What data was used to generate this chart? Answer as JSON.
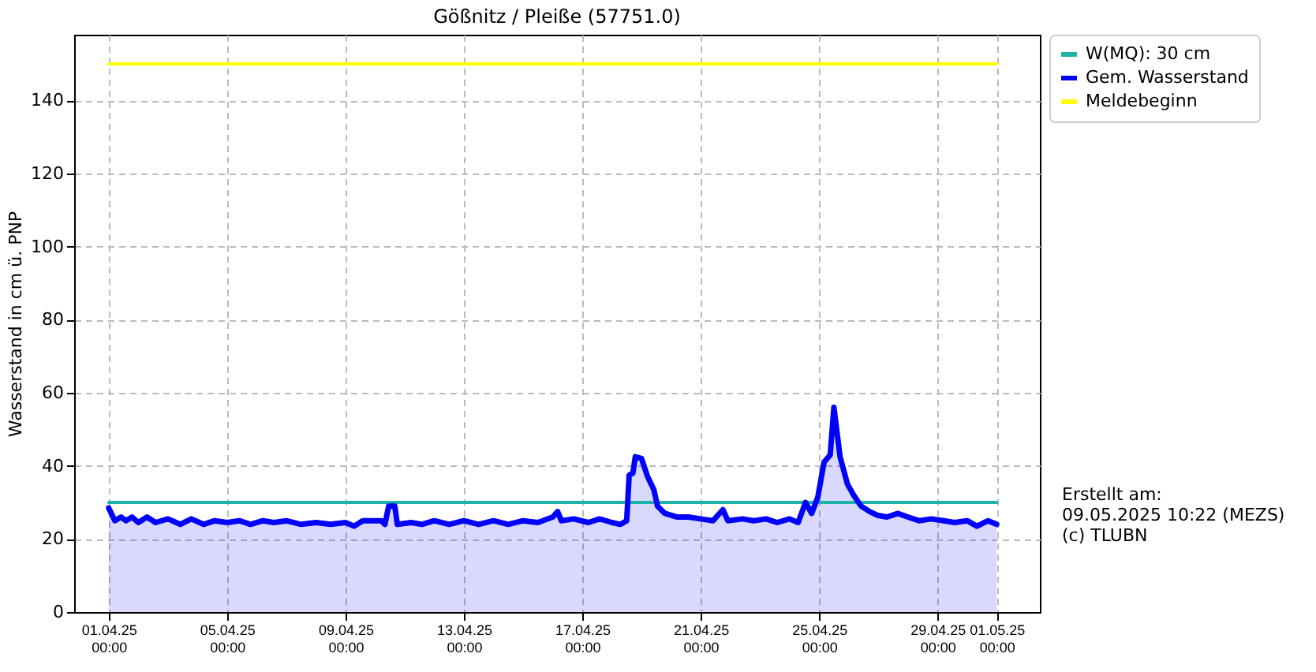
{
  "chart_data": {
    "type": "line",
    "title": "Gößnitz / Pleiße (57751.0)",
    "ylabel": "Wasserstand in cm ü. PNP",
    "xlim": [
      "2025-03-30T20:00",
      "2025-05-02T11:00"
    ],
    "ylim": [
      0,
      158
    ],
    "yticks": [
      0,
      20,
      40,
      60,
      80,
      100,
      120,
      140
    ],
    "xticks": [
      {
        "value": "2025-04-01T00:00",
        "label": "01.04.25\n00:00"
      },
      {
        "value": "2025-04-05T00:00",
        "label": "05.04.25\n00:00"
      },
      {
        "value": "2025-04-09T00:00",
        "label": "09.04.25\n00:00"
      },
      {
        "value": "2025-04-13T00:00",
        "label": "13.04.25\n00:00"
      },
      {
        "value": "2025-04-17T00:00",
        "label": "17.04.25\n00:00"
      },
      {
        "value": "2025-04-21T00:00",
        "label": "21.04.25\n00:00"
      },
      {
        "value": "2025-04-25T00:00",
        "label": "25.04.25\n00:00"
      },
      {
        "value": "2025-04-29T00:00",
        "label": "29.04.25\n00:00"
      },
      {
        "value": "2025-05-01T00:00",
        "label": "01.05.25\n00:00"
      }
    ],
    "grid": true,
    "legend": "top right",
    "annotations": [
      "Erstellt am:\n09.05.2025 10:22 (MEZS)\n(c) TLUBN"
    ],
    "series": [
      {
        "name": "W(MQ): 30 cm",
        "color": "#20b2aa",
        "x": [
          "2025-04-01T00:00",
          "2025-05-01T00:00"
        ],
        "values": [
          30,
          30
        ]
      },
      {
        "name": "Gem. Wasserstand",
        "color": "#0000ff",
        "type": "area",
        "x": [
          "2025-04-01T00:00",
          "2025-04-01T05:00",
          "2025-04-01T10:00",
          "2025-04-01T14:00",
          "2025-04-01T19:00",
          "2025-04-02T00:00",
          "2025-04-02T07:00",
          "2025-04-02T14:00",
          "2025-04-03T00:00",
          "2025-04-03T10:00",
          "2025-04-03T19:00",
          "2025-04-04T05:00",
          "2025-04-04T14:00",
          "2025-04-05T00:00",
          "2025-04-05T10:00",
          "2025-04-05T19:00",
          "2025-04-06T05:00",
          "2025-04-06T14:00",
          "2025-04-07T00:00",
          "2025-04-07T12:00",
          "2025-04-08T00:00",
          "2025-04-08T12:00",
          "2025-04-09T00:00",
          "2025-04-09T07:00",
          "2025-04-09T14:00",
          "2025-04-10T05:00",
          "2025-04-10T08:00",
          "2025-04-10T11:00",
          "2025-04-10T16:00",
          "2025-04-10T18:00",
          "2025-04-11T05:00",
          "2025-04-11T14:00",
          "2025-04-12T00:00",
          "2025-04-12T12:00",
          "2025-04-13T00:00",
          "2025-04-13T12:00",
          "2025-04-14T00:00",
          "2025-04-14T12:00",
          "2025-04-15T00:00",
          "2025-04-15T12:00",
          "2025-04-16T00:00",
          "2025-04-16T04:00",
          "2025-04-16T07:00",
          "2025-04-16T17:00",
          "2025-04-17T05:00",
          "2025-04-17T14:00",
          "2025-04-18T00:00",
          "2025-04-18T07:00",
          "2025-04-18T12:00",
          "2025-04-18T14:00",
          "2025-04-18T17:00",
          "2025-04-18T19:00",
          "2025-04-19T00:00",
          "2025-04-19T05:00",
          "2025-04-19T10:00",
          "2025-04-19T13:00",
          "2025-04-19T19:00",
          "2025-04-20T05:00",
          "2025-04-20T14:00",
          "2025-04-21T00:00",
          "2025-04-21T10:00",
          "2025-04-21T18:00",
          "2025-04-21T22:00",
          "2025-04-22T10:00",
          "2025-04-22T19:00",
          "2025-04-23T05:00",
          "2025-04-23T14:00",
          "2025-04-24T00:00",
          "2025-04-24T07:00",
          "2025-04-24T13:00",
          "2025-04-24T18:00",
          "2025-04-24T23:00",
          "2025-04-25T04:00",
          "2025-04-25T09:00",
          "2025-04-25T12:00",
          "2025-04-25T17:00",
          "2025-04-25T23:00",
          "2025-04-26T04:00",
          "2025-04-26T10:00",
          "2025-04-26T17:00",
          "2025-04-26T23:00",
          "2025-04-27T07:00",
          "2025-04-27T16:00",
          "2025-04-28T00:00",
          "2025-04-28T09:00",
          "2025-04-28T19:00",
          "2025-04-29T05:00",
          "2025-04-29T14:00",
          "2025-04-30T00:00",
          "2025-04-30T08:00",
          "2025-04-30T17:00",
          "2025-05-01T00:00"
        ],
        "values": [
          28.5,
          25,
          26,
          25,
          26,
          24.5,
          26,
          24.5,
          25.5,
          24,
          25.5,
          24,
          25,
          24.5,
          25,
          24,
          25,
          24.5,
          25,
          24,
          24.5,
          24,
          24.5,
          23.5,
          25,
          25,
          24,
          29,
          29,
          24,
          24.5,
          24,
          25,
          24,
          25,
          24,
          25,
          24,
          25,
          24.5,
          26,
          27.5,
          25,
          25.5,
          24.5,
          25.5,
          24.5,
          24,
          25,
          37.5,
          38,
          42.5,
          42,
          37,
          33.5,
          29,
          27,
          26,
          26,
          25.5,
          25,
          28,
          25,
          25.5,
          25,
          25.5,
          24.5,
          25.5,
          24.5,
          30,
          27,
          31.5,
          41,
          43,
          56,
          42.5,
          35,
          32,
          29,
          27.5,
          26.5,
          26,
          27,
          26,
          25,
          25.5,
          25,
          24.5,
          25,
          23.5,
          25,
          24
        ]
      },
      {
        "name": "Meldebeginn",
        "color": "#ffff00",
        "x": [
          "2025-04-01T00:00",
          "2025-05-01T00:00"
        ],
        "values": [
          150,
          150
        ]
      }
    ]
  }
}
